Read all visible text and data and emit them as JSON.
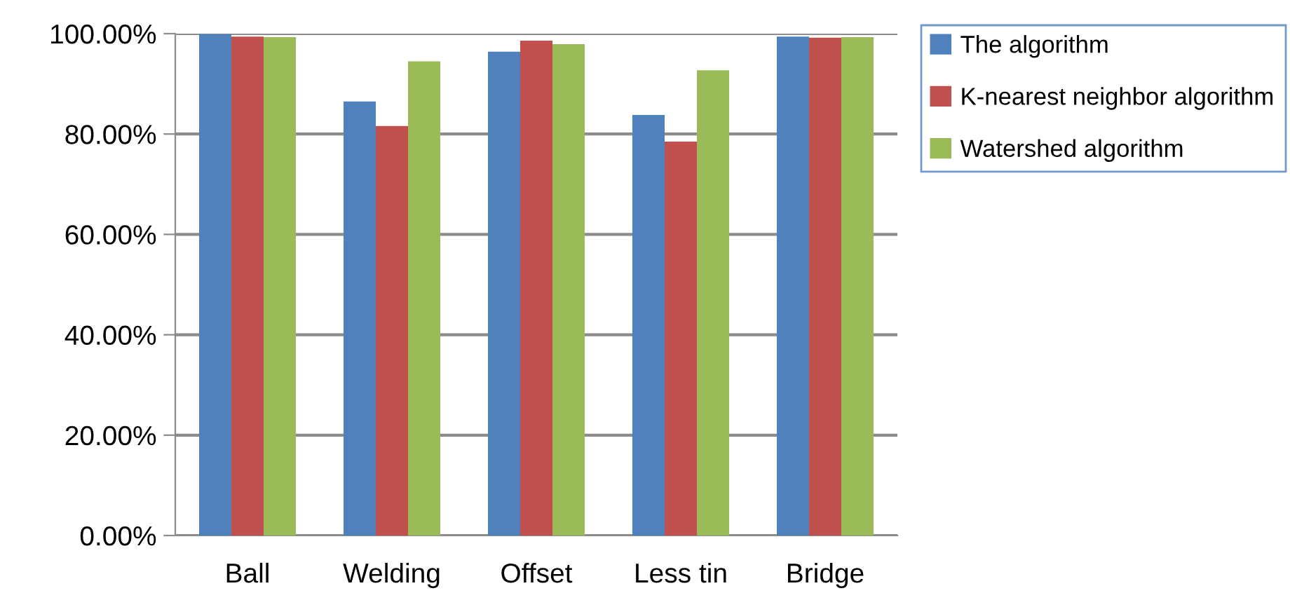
{
  "chart_data": {
    "type": "bar",
    "categories": [
      "Ball",
      "Welding",
      "Offset",
      "Less tin",
      "Bridge"
    ],
    "series": [
      {
        "name": "The algorithm",
        "color": "#4f81bd",
        "values": [
          99.9,
          86.5,
          96.4,
          83.8,
          99.4
        ]
      },
      {
        "name": "K-nearest neighbor algorithm",
        "color": "#c0504d",
        "values": [
          99.4,
          81.6,
          98.6,
          78.5,
          99.2
        ]
      },
      {
        "name": "Watershed algorithm",
        "color": "#9bbb59",
        "values": [
          99.3,
          94.5,
          97.9,
          92.7,
          99.3
        ]
      }
    ],
    "ylim": [
      0,
      100
    ],
    "yticks": [
      {
        "value": 0,
        "label": "0.00%"
      },
      {
        "value": 20,
        "label": "20.00%"
      },
      {
        "value": 40,
        "label": "40.00%"
      },
      {
        "value": 60,
        "label": "60.00%"
      },
      {
        "value": 80,
        "label": "80.00%"
      },
      {
        "value": 100,
        "label": "100.00%"
      }
    ],
    "grid": "y",
    "legend": "right"
  }
}
